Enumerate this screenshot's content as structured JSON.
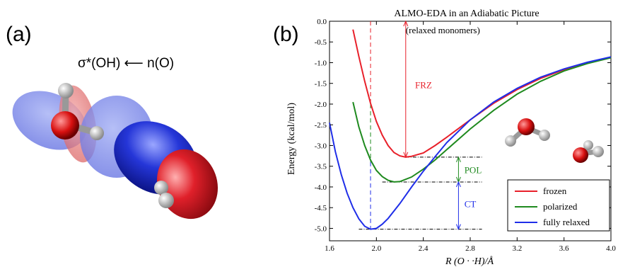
{
  "panel_a_label": "(a)",
  "panel_b_label": "(b)",
  "orbital_title": "σ*(OH)  ⟵  n(O)",
  "colors": {
    "frozen": "#e8202a",
    "polarized": "#1f8a1f",
    "fully_relaxed": "#1f2ee8",
    "orbital_blue": "#2536d8",
    "orbital_red": "#e0202a"
  },
  "chart_data": {
    "type": "line",
    "title": "ALMO-EDA in an Adiabatic Picture",
    "xlabel": "R (O · ·H)/Å",
    "ylabel": "Energy (kcal/mol)",
    "xlim": [
      1.6,
      4.0
    ],
    "ylim": [
      -5.3,
      0.0
    ],
    "xticks": [
      "1.6",
      "2.0",
      "2.4",
      "2.8",
      "3.2",
      "3.6",
      "4.0"
    ],
    "yticks": [
      "0.0",
      "-0.5",
      "-1.0",
      "-1.5",
      "-2.0",
      "-2.5",
      "-3.0",
      "-3.5",
      "-4.0",
      "-4.5",
      "-5.0"
    ],
    "legend_placement": "bottom-right",
    "series": [
      {
        "name": "frozen",
        "color_key": "frozen",
        "x": [
          1.8,
          1.85,
          1.9,
          1.95,
          2.0,
          2.05,
          2.1,
          2.15,
          2.2,
          2.25,
          2.3,
          2.4,
          2.5,
          2.6,
          2.8,
          3.0,
          3.2,
          3.4,
          3.6,
          3.8,
          4.0
        ],
        "y": [
          -0.2,
          -0.85,
          -1.45,
          -1.98,
          -2.42,
          -2.75,
          -3.0,
          -3.17,
          -3.25,
          -3.28,
          -3.26,
          -3.18,
          -3.0,
          -2.8,
          -2.38,
          -1.98,
          -1.65,
          -1.38,
          -1.17,
          -1.0,
          -0.87
        ]
      },
      {
        "name": "polarized",
        "color_key": "polarized",
        "x": [
          1.8,
          1.85,
          1.9,
          1.95,
          2.0,
          2.05,
          2.1,
          2.15,
          2.2,
          2.3,
          2.4,
          2.5,
          2.6,
          2.8,
          3.0,
          3.2,
          3.4,
          3.6,
          3.8,
          4.0
        ],
        "y": [
          -1.95,
          -2.55,
          -3.0,
          -3.35,
          -3.6,
          -3.75,
          -3.84,
          -3.88,
          -3.87,
          -3.76,
          -3.57,
          -3.35,
          -3.1,
          -2.6,
          -2.15,
          -1.76,
          -1.45,
          -1.2,
          -1.02,
          -0.88
        ]
      },
      {
        "name": "fully relaxed",
        "color_key": "fully_relaxed",
        "x": [
          1.6,
          1.65,
          1.7,
          1.75,
          1.8,
          1.85,
          1.9,
          1.95,
          2.0,
          2.05,
          2.1,
          2.2,
          2.3,
          2.4,
          2.5,
          2.6,
          2.8,
          3.0,
          3.2,
          3.4,
          3.6,
          3.8,
          4.0
        ],
        "y": [
          -2.45,
          -3.15,
          -3.7,
          -4.15,
          -4.5,
          -4.77,
          -4.95,
          -5.02,
          -5.0,
          -4.9,
          -4.76,
          -4.4,
          -4.0,
          -3.62,
          -3.27,
          -2.93,
          -2.38,
          -1.95,
          -1.62,
          -1.35,
          -1.15,
          -0.99,
          -0.86
        ]
      }
    ],
    "annotations": [
      {
        "text": "(relaxed monomers)",
        "x": 2.25,
        "y": -0.22
      },
      {
        "text": "FRZ",
        "x": 2.33,
        "y": -1.55,
        "color_key": "frozen"
      },
      {
        "text": "POL",
        "x": 2.75,
        "y": -3.6,
        "color_key": "polarized"
      },
      {
        "text": "CT",
        "x": 2.75,
        "y": -4.42,
        "color_key": "fully_relaxed"
      }
    ],
    "arrows": [
      {
        "x": 2.25,
        "y_from": 0.0,
        "y_to": -3.28,
        "color_key": "frozen"
      },
      {
        "x": 2.7,
        "y_from": -3.28,
        "y_to": -3.88,
        "color_key": "polarized"
      },
      {
        "x": 2.7,
        "y_from": -3.88,
        "y_to": -5.02,
        "color_key": "fully_relaxed"
      }
    ],
    "reference_levels": [
      {
        "y": -3.28,
        "x_from": 2.25,
        "x_to": 2.9
      },
      {
        "y": -3.88,
        "x_from": 2.05,
        "x_to": 2.9
      },
      {
        "y": -5.02,
        "x_from": 1.85,
        "x_to": 2.9
      }
    ],
    "vertical_markers": [
      {
        "x": 1.95,
        "y_from": 0.0,
        "y_to": -2.0,
        "color_key": "frozen"
      },
      {
        "x": 1.95,
        "y_from": -2.0,
        "y_to": -3.4,
        "color_key": "polarized"
      },
      {
        "x": 1.95,
        "y_from": -3.4,
        "y_to": -5.02,
        "color_key": "fully_relaxed"
      }
    ]
  }
}
